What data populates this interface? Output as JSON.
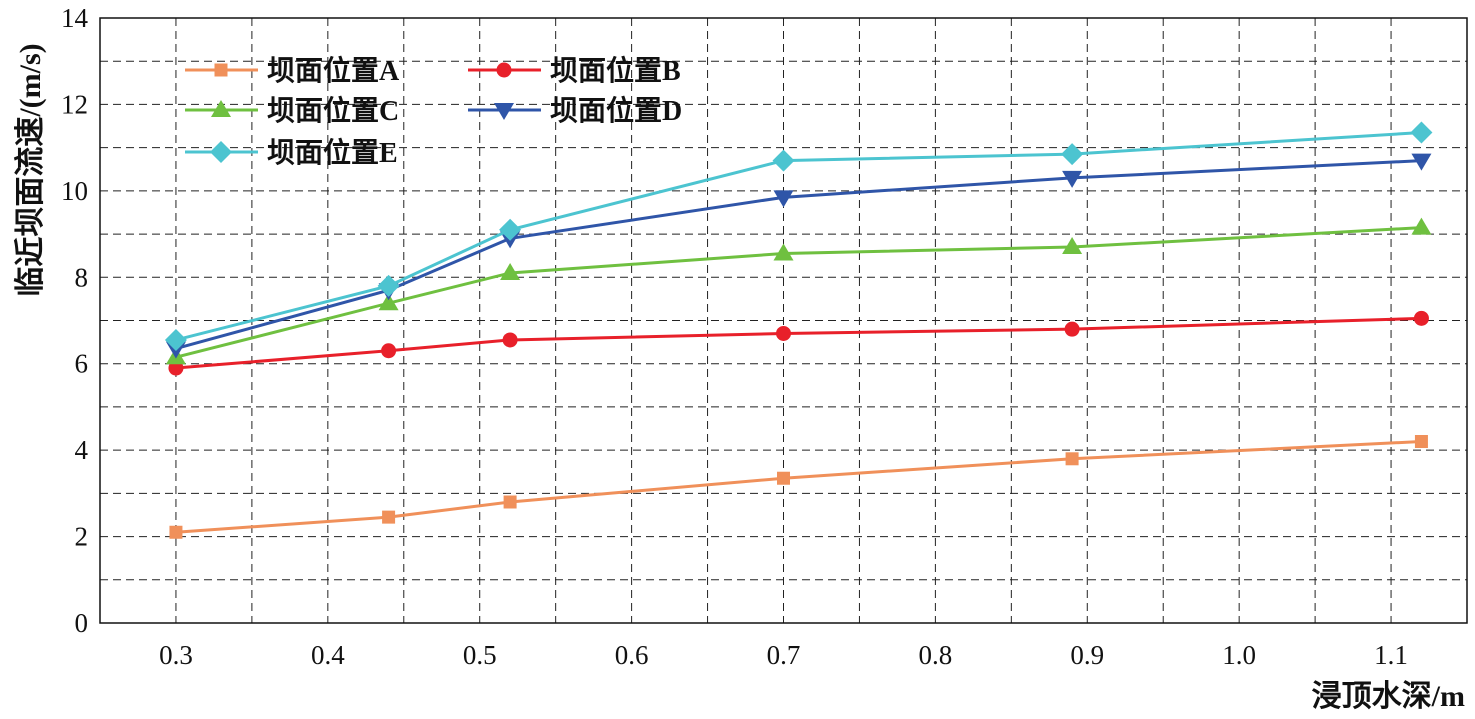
{
  "chart_data": {
    "type": "line",
    "title": "",
    "xlabel": "浸顶水深/m",
    "ylabel": "临近坝面流速/(m/s)",
    "xlim": [
      0.25,
      1.15
    ],
    "ylim": [
      0,
      14
    ],
    "xticks": [
      0.3,
      0.4,
      0.5,
      0.6,
      0.7,
      0.8,
      0.9,
      1.0,
      1.1
    ],
    "xtick_labels": [
      "0.3",
      "0.4",
      "0.5",
      "0.6",
      "0.7",
      "0.8",
      "0.9",
      "1.0",
      "1.1"
    ],
    "yticks": [
      0,
      2,
      4,
      6,
      8,
      10,
      12,
      14
    ],
    "ytick_labels": [
      "0",
      "2",
      "4",
      "6",
      "8",
      "10",
      "12",
      "14"
    ],
    "grid": true,
    "legend_position": "top-left",
    "x": [
      0.3,
      0.44,
      0.52,
      0.7,
      0.89,
      1.12
    ],
    "series": [
      {
        "name": "坝面位置A",
        "color": "#F0905A",
        "marker": "square",
        "values": [
          2.1,
          2.45,
          2.8,
          3.35,
          3.8,
          4.2
        ]
      },
      {
        "name": "坝面位置B",
        "color": "#E8202A",
        "marker": "circle",
        "values": [
          5.9,
          6.3,
          6.55,
          6.7,
          6.8,
          7.05
        ]
      },
      {
        "name": "坝面位置C",
        "color": "#6FC040",
        "marker": "triangle-up",
        "values": [
          6.15,
          7.4,
          8.1,
          8.55,
          8.7,
          9.15
        ]
      },
      {
        "name": "坝面位置D",
        "color": "#2F55A8",
        "marker": "triangle-down",
        "values": [
          6.35,
          7.7,
          8.9,
          9.85,
          10.3,
          10.7
        ]
      },
      {
        "name": "坝面位置E",
        "color": "#4CC4D0",
        "marker": "diamond",
        "values": [
          6.55,
          7.8,
          9.1,
          10.7,
          10.85,
          11.35
        ]
      }
    ]
  }
}
